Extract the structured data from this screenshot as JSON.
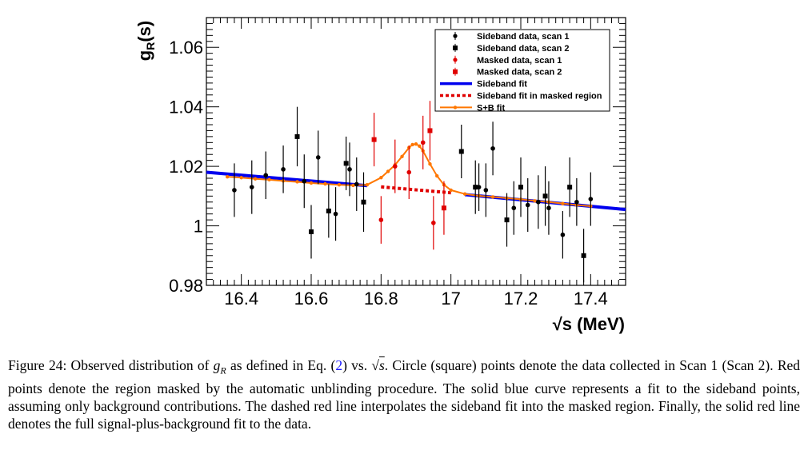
{
  "chart_data": {
    "type": "scatter",
    "xlabel": "√s (MeV)",
    "ylabel": "g_R(s)",
    "xlim": [
      16.3,
      17.5
    ],
    "ylim": [
      0.98,
      1.07
    ],
    "x_ticks": [
      "16.4",
      "16.6",
      "16.8",
      "17",
      "17.2",
      "17.4"
    ],
    "y_ticks": [
      "0.98",
      "1",
      "1.02",
      "1.04",
      "1.06"
    ],
    "legend_position": "top-right",
    "legend": [
      "Sideband data, scan 1",
      "Sideband data, scan 2",
      "Masked  data, scan 1",
      "Masked  data, scan 2",
      "Sideband fit",
      "Sideband fit in masked region",
      "S+B fit"
    ],
    "colors": {
      "sideband": "#000000",
      "masked": "#e00000",
      "sideband_fit": "#0000ee",
      "sb_fit": "#ff7700"
    },
    "series": [
      {
        "name": "Sideband data, scan 1",
        "marker": "circle",
        "color": "#000000",
        "points": [
          {
            "x": 16.38,
            "y": 1.012,
            "err": 0.009
          },
          {
            "x": 16.43,
            "y": 1.013,
            "err": 0.009
          },
          {
            "x": 16.47,
            "y": 1.017,
            "err": 0.008
          },
          {
            "x": 16.52,
            "y": 1.019,
            "err": 0.008
          },
          {
            "x": 16.58,
            "y": 1.015,
            "err": 0.009
          },
          {
            "x": 16.62,
            "y": 1.023,
            "err": 0.009
          },
          {
            "x": 16.67,
            "y": 1.004,
            "err": 0.009
          },
          {
            "x": 16.71,
            "y": 1.019,
            "err": 0.009
          },
          {
            "x": 16.73,
            "y": 1.014,
            "err": 0.009
          },
          {
            "x": 17.08,
            "y": 1.013,
            "err": 0.008
          },
          {
            "x": 17.1,
            "y": 1.012,
            "err": 0.009
          },
          {
            "x": 17.12,
            "y": 1.026,
            "err": 0.009
          },
          {
            "x": 17.18,
            "y": 1.006,
            "err": 0.009
          },
          {
            "x": 17.22,
            "y": 1.007,
            "err": 0.009
          },
          {
            "x": 17.25,
            "y": 1.008,
            "err": 0.009
          },
          {
            "x": 17.28,
            "y": 1.006,
            "err": 0.009
          },
          {
            "x": 17.32,
            "y": 0.997,
            "err": 0.008
          },
          {
            "x": 17.36,
            "y": 1.008,
            "err": 0.008
          },
          {
            "x": 17.4,
            "y": 1.009,
            "err": 0.009
          }
        ]
      },
      {
        "name": "Sideband data, scan 2",
        "marker": "square",
        "color": "#000000",
        "points": [
          {
            "x": 16.56,
            "y": 1.03,
            "err": 0.01
          },
          {
            "x": 16.6,
            "y": 0.998,
            "err": 0.009
          },
          {
            "x": 16.65,
            "y": 1.005,
            "err": 0.009
          },
          {
            "x": 16.7,
            "y": 1.021,
            "err": 0.009
          },
          {
            "x": 16.75,
            "y": 1.008,
            "err": 0.01
          },
          {
            "x": 17.03,
            "y": 1.025,
            "err": 0.009
          },
          {
            "x": 17.07,
            "y": 1.013,
            "err": 0.009
          },
          {
            "x": 17.16,
            "y": 1.002,
            "err": 0.009
          },
          {
            "x": 17.2,
            "y": 1.013,
            "err": 0.01
          },
          {
            "x": 17.27,
            "y": 1.01,
            "err": 0.01
          },
          {
            "x": 17.34,
            "y": 1.013,
            "err": 0.01
          },
          {
            "x": 17.38,
            "y": 0.99,
            "err": 0.009
          }
        ]
      },
      {
        "name": "Masked  data, scan 1",
        "marker": "circle",
        "color": "#e00000",
        "points": [
          {
            "x": 16.8,
            "y": 1.002,
            "err": 0.008
          },
          {
            "x": 16.84,
            "y": 1.02,
            "err": 0.009
          },
          {
            "x": 16.88,
            "y": 1.018,
            "err": 0.009
          },
          {
            "x": 16.92,
            "y": 1.028,
            "err": 0.009
          },
          {
            "x": 16.95,
            "y": 1.001,
            "err": 0.009
          }
        ]
      },
      {
        "name": "Masked  data, scan 2",
        "marker": "square",
        "color": "#e00000",
        "points": [
          {
            "x": 16.78,
            "y": 1.029,
            "err": 0.009
          },
          {
            "x": 16.94,
            "y": 1.032,
            "err": 0.01
          },
          {
            "x": 16.98,
            "y": 1.006,
            "err": 0.009
          }
        ]
      }
    ],
    "sideband_fit": {
      "x": [
        16.3,
        16.76,
        17.04,
        17.5
      ],
      "y": [
        1.018,
        1.0135,
        1.0105,
        1.0055
      ]
    },
    "sideband_fit_masked": {
      "x": [
        16.8,
        17.0
      ],
      "y": [
        1.0131,
        1.0111
      ]
    },
    "sb_fit": {
      "x": [
        16.36,
        16.4,
        16.44,
        16.48,
        16.52,
        16.56,
        16.6,
        16.64,
        16.68,
        16.72,
        16.76,
        16.8,
        16.82,
        16.84,
        16.86,
        16.88,
        16.89,
        16.9,
        16.91,
        16.92,
        16.94,
        16.96,
        16.98,
        17.0,
        17.04,
        17.08,
        17.12,
        17.16,
        17.2,
        17.24,
        17.28,
        17.32,
        17.36,
        17.4
      ],
      "y": [
        1.0165,
        1.0162,
        1.0158,
        1.0155,
        1.0151,
        1.0148,
        1.0144,
        1.0141,
        1.0138,
        1.0136,
        1.0138,
        1.0162,
        1.0183,
        1.0205,
        1.0233,
        1.0263,
        1.0273,
        1.0275,
        1.0268,
        1.0252,
        1.0208,
        1.0168,
        1.0138,
        1.012,
        1.0107,
        1.0101,
        1.0097,
        1.0093,
        1.0089,
        1.0084,
        1.008,
        1.0075,
        1.007,
        1.0066
      ]
    }
  },
  "caption": {
    "prefix": "Figure 24: Observed distribution of ",
    "var": "g",
    "var_sub": "R",
    "mid1": " as defined in Eq. (",
    "eq_ref": "2",
    "mid2": ") vs. ",
    "sqrt_arg": "s",
    "rest": ". Circle (square) points denote the data collected in Scan 1 (Scan 2). Red points denote the region masked by the automatic unblinding procedure. The solid blue curve represents a fit to the sideband points, assuming only background contributions. The dashed red line interpolates the sideband fit into the masked region. Finally, the solid red line denotes the full signal-plus-background fit to the data."
  }
}
